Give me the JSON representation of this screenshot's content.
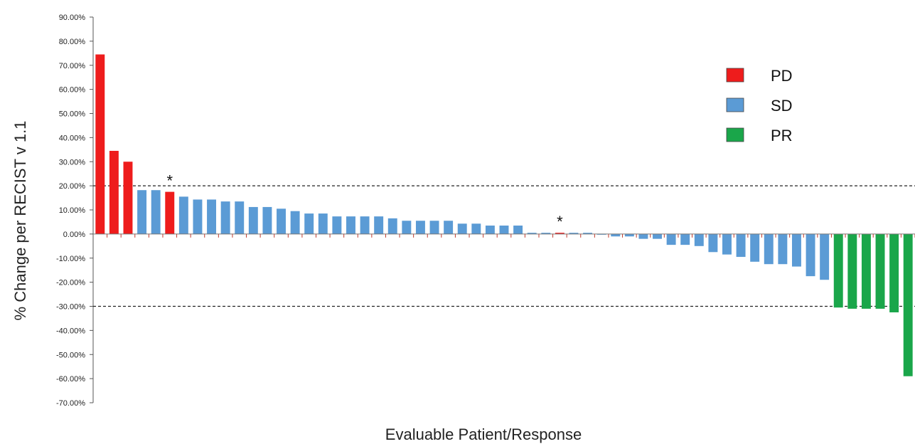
{
  "chart_data": {
    "type": "bar",
    "title": "",
    "xlabel": "Evaluable Patient/Response",
    "ylabel": "% Change per RECIST v 1.1",
    "ylim": [
      -70,
      90
    ],
    "yticks": [
      90,
      80,
      70,
      60,
      50,
      40,
      30,
      20,
      10,
      0,
      -10,
      -20,
      -30,
      -40,
      -50,
      -60,
      -70
    ],
    "ytick_labels": [
      "90.00%",
      "80.00%",
      "70.00%",
      "60.00%",
      "50.00%",
      "40.00%",
      "30.00%",
      "20.00%",
      "10.00%",
      "0.00%",
      "-10.00%",
      "-20.00%",
      "-30.00%",
      "-40.00%",
      "-50.00%",
      "-60.00%",
      "-70.00%"
    ],
    "reference_lines": [
      20,
      -30
    ],
    "grid": false,
    "legend_position": "top-right",
    "legend": [
      {
        "label": "PD",
        "color": "#ee1c1c"
      },
      {
        "label": "SD",
        "color": "#5b9bd5"
      },
      {
        "label": "PR",
        "color": "#1aa64a"
      }
    ],
    "colors": {
      "PD": "#ee1c1c",
      "SD": "#5b9bd5",
      "PR": "#1aa64a"
    },
    "bars": [
      {
        "value": 74.5,
        "response": "PD"
      },
      {
        "value": 34.5,
        "response": "PD"
      },
      {
        "value": 30.0,
        "response": "PD"
      },
      {
        "value": 18.2,
        "response": "SD"
      },
      {
        "value": 18.2,
        "response": "SD"
      },
      {
        "value": 17.5,
        "response": "PD",
        "annotation": "*"
      },
      {
        "value": 15.5,
        "response": "SD"
      },
      {
        "value": 14.3,
        "response": "SD"
      },
      {
        "value": 14.3,
        "response": "SD"
      },
      {
        "value": 13.5,
        "response": "SD"
      },
      {
        "value": 13.5,
        "response": "SD"
      },
      {
        "value": 11.2,
        "response": "SD"
      },
      {
        "value": 11.2,
        "response": "SD"
      },
      {
        "value": 10.5,
        "response": "SD"
      },
      {
        "value": 9.5,
        "response": "SD"
      },
      {
        "value": 8.5,
        "response": "SD"
      },
      {
        "value": 8.5,
        "response": "SD"
      },
      {
        "value": 7.3,
        "response": "SD"
      },
      {
        "value": 7.3,
        "response": "SD"
      },
      {
        "value": 7.3,
        "response": "SD"
      },
      {
        "value": 7.3,
        "response": "SD"
      },
      {
        "value": 6.5,
        "response": "SD"
      },
      {
        "value": 5.5,
        "response": "SD"
      },
      {
        "value": 5.5,
        "response": "SD"
      },
      {
        "value": 5.5,
        "response": "SD"
      },
      {
        "value": 5.5,
        "response": "SD"
      },
      {
        "value": 4.3,
        "response": "SD"
      },
      {
        "value": 4.3,
        "response": "SD"
      },
      {
        "value": 3.5,
        "response": "SD"
      },
      {
        "value": 3.5,
        "response": "SD"
      },
      {
        "value": 3.5,
        "response": "SD"
      },
      {
        "value": 0.5,
        "response": "SD"
      },
      {
        "value": 0.5,
        "response": "SD"
      },
      {
        "value": 0.5,
        "response": "PD",
        "annotation": "*"
      },
      {
        "value": 0.5,
        "response": "SD"
      },
      {
        "value": 0.5,
        "response": "SD"
      },
      {
        "value": 0.0,
        "response": "SD"
      },
      {
        "value": -1.0,
        "response": "SD"
      },
      {
        "value": -1.0,
        "response": "SD"
      },
      {
        "value": -2.0,
        "response": "SD"
      },
      {
        "value": -2.0,
        "response": "SD"
      },
      {
        "value": -4.5,
        "response": "SD"
      },
      {
        "value": -4.5,
        "response": "SD"
      },
      {
        "value": -5.0,
        "response": "SD"
      },
      {
        "value": -7.5,
        "response": "SD"
      },
      {
        "value": -8.5,
        "response": "SD"
      },
      {
        "value": -9.5,
        "response": "SD"
      },
      {
        "value": -11.5,
        "response": "SD"
      },
      {
        "value": -12.5,
        "response": "SD"
      },
      {
        "value": -12.5,
        "response": "SD"
      },
      {
        "value": -13.5,
        "response": "SD"
      },
      {
        "value": -17.5,
        "response": "SD"
      },
      {
        "value": -19.0,
        "response": "SD"
      },
      {
        "value": -30.5,
        "response": "PR"
      },
      {
        "value": -31.0,
        "response": "PR"
      },
      {
        "value": -31.0,
        "response": "PR"
      },
      {
        "value": -31.0,
        "response": "PR"
      },
      {
        "value": -32.5,
        "response": "PR"
      },
      {
        "value": -59.0,
        "response": "PR"
      }
    ]
  }
}
